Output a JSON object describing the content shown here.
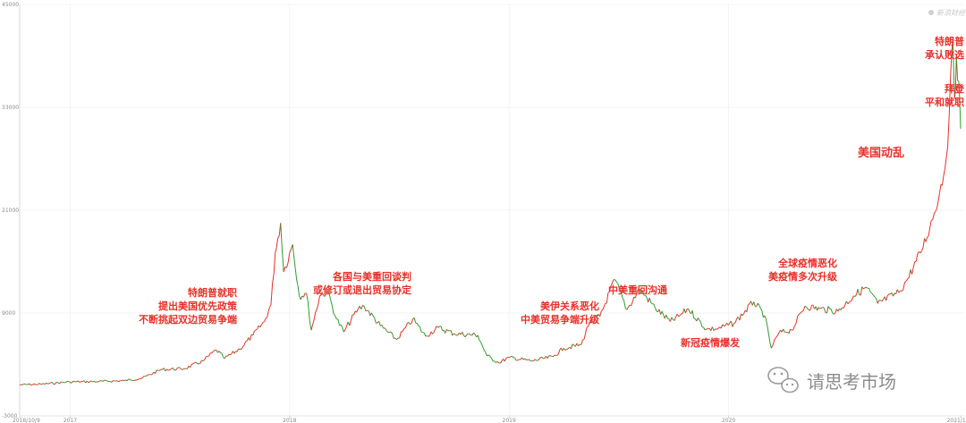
{
  "chart_data": {
    "type": "line",
    "title": "",
    "xlabel": "",
    "ylabel": "",
    "ylim": [
      -3000,
      45000
    ],
    "y_ticks": [
      "45000",
      "33000",
      "21000",
      "9000",
      "-3000"
    ],
    "y_tick_values": [
      45000,
      33000,
      21000,
      9000,
      -3000
    ],
    "x_ticks": [
      "2016/10/9",
      "2017",
      "2018",
      "2019",
      "2020",
      "2021/1/21"
    ],
    "x_tick_dates": [
      "2016-10-09",
      "2017-01-01",
      "2018-01-01",
      "2019-01-01",
      "2020-01-01",
      "2021-01-21"
    ],
    "grid": true,
    "up_color": "#e8302a",
    "down_color": "#2e9e2e",
    "series": [
      {
        "values": [
          [
            "2016-10-09",
            620
          ],
          [
            "2016-11-15",
            700
          ],
          [
            "2016-12-31",
            960
          ],
          [
            "2017-02-15",
            1000
          ],
          [
            "2017-04-01",
            1100
          ],
          [
            "2017-05-01",
            1400
          ],
          [
            "2017-06-01",
            2400
          ],
          [
            "2017-07-10",
            2500
          ],
          [
            "2017-08-10",
            3400
          ],
          [
            "2017-09-01",
            4700
          ],
          [
            "2017-09-15",
            3700
          ],
          [
            "2017-10-10",
            4800
          ],
          [
            "2017-11-01",
            6400
          ],
          [
            "2017-11-20",
            8000
          ],
          [
            "2017-12-01",
            10000
          ],
          [
            "2017-12-08",
            16000
          ],
          [
            "2017-12-17",
            19500
          ],
          [
            "2017-12-22",
            13800
          ],
          [
            "2018-01-06",
            17000
          ],
          [
            "2018-01-17",
            11000
          ],
          [
            "2018-01-29",
            11300
          ],
          [
            "2018-02-06",
            7000
          ],
          [
            "2018-02-20",
            11000
          ],
          [
            "2018-03-05",
            11500
          ],
          [
            "2018-03-20",
            8300
          ],
          [
            "2018-04-01",
            6800
          ],
          [
            "2018-04-25",
            9500
          ],
          [
            "2018-05-05",
            9800
          ],
          [
            "2018-06-01",
            7500
          ],
          [
            "2018-06-28",
            5900
          ],
          [
            "2018-07-25",
            8300
          ],
          [
            "2018-08-15",
            6300
          ],
          [
            "2018-09-05",
            7300
          ],
          [
            "2018-10-01",
            6600
          ],
          [
            "2018-11-10",
            6400
          ],
          [
            "2018-11-25",
            4000
          ],
          [
            "2018-12-15",
            3200
          ],
          [
            "2019-01-01",
            3800
          ],
          [
            "2019-02-08",
            3400
          ],
          [
            "2019-03-15",
            3900
          ],
          [
            "2019-04-02",
            4900
          ],
          [
            "2019-05-01",
            5300
          ],
          [
            "2019-05-15",
            8000
          ],
          [
            "2019-06-01",
            8600
          ],
          [
            "2019-06-26",
            12900
          ],
          [
            "2019-07-16",
            9400
          ],
          [
            "2019-08-06",
            11800
          ],
          [
            "2019-09-01",
            9600
          ],
          [
            "2019-09-26",
            8000
          ],
          [
            "2019-10-10",
            8600
          ],
          [
            "2019-10-26",
            9500
          ],
          [
            "2019-11-25",
            7100
          ],
          [
            "2019-12-15",
            7200
          ],
          [
            "2020-01-10",
            7800
          ],
          [
            "2020-02-12",
            10300
          ],
          [
            "2020-03-01",
            8700
          ],
          [
            "2020-03-12",
            4900
          ],
          [
            "2020-03-25",
            6700
          ],
          [
            "2020-04-15",
            7000
          ],
          [
            "2020-05-07",
            9800
          ],
          [
            "2020-06-01",
            9500
          ],
          [
            "2020-07-01",
            9200
          ],
          [
            "2020-07-27",
            11000
          ],
          [
            "2020-08-17",
            12000
          ],
          [
            "2020-09-05",
            10100
          ],
          [
            "2020-10-10",
            11400
          ],
          [
            "2020-10-25",
            13000
          ],
          [
            "2020-11-15",
            16000
          ],
          [
            "2020-12-01",
            19000
          ],
          [
            "2020-12-17",
            23000
          ],
          [
            "2020-12-28",
            27000
          ],
          [
            "2021-01-02",
            32000
          ],
          [
            "2021-01-08",
            41000
          ],
          [
            "2021-01-11",
            34000
          ],
          [
            "2021-01-14",
            39000
          ],
          [
            "2021-01-18",
            36000
          ],
          [
            "2021-01-21",
            30500
          ]
        ]
      }
    ],
    "annotations": [
      {
        "lines": [
          "特朗普就职",
          "提出美国优先政策",
          "不断挑起双边贸易争端"
        ],
        "date": "2017-01-20",
        "y": 9000
      },
      {
        "lines": [
          "各国与美重回谈判",
          "或修订或退出贸易协定"
        ],
        "date": "2018-02-20",
        "y": 12500
      },
      {
        "lines": [
          "美伊关系恶化",
          "中美贸易争端升级"
        ],
        "date": "2019-06-01",
        "y": 8300
      },
      {
        "lines": [
          "中美重回沟通"
        ],
        "date": "2019-07-20",
        "y": 11200
      },
      {
        "lines": [
          "新冠疫情爆发"
        ],
        "date": "2020-03-20",
        "y": 6100
      },
      {
        "lines": [
          "全球疫情恶化",
          "美疫情多次升级"
        ],
        "date": "2020-07-25",
        "y": 14000
      },
      {
        "lines": [
          "美国动乱"
        ],
        "date": "2020-12-10",
        "y": 27500
      },
      {
        "lines": [
          "特朗普",
          "承认败选"
        ],
        "date": "2021-01-12",
        "y": 40000
      },
      {
        "lines": [
          "拜登",
          "平和就职"
        ],
        "date": "2021-01-18",
        "y": 33500
      }
    ]
  },
  "watermark": {
    "brand": "请思考市场",
    "top_logo": "新浪财经"
  }
}
